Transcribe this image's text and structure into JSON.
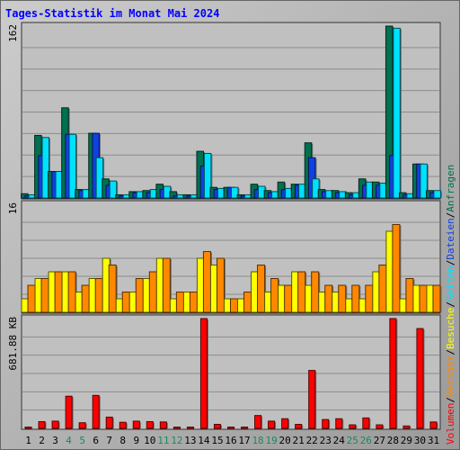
{
  "chart_data": {
    "type": "bar",
    "title": "Tages-Statistik im Monat Mai 2024",
    "x": [
      "1",
      "2",
      "3",
      "4",
      "5",
      "6",
      "7",
      "8",
      "9",
      "10",
      "11",
      "12",
      "13",
      "14",
      "15",
      "16",
      "17",
      "18",
      "19",
      "20",
      "21",
      "22",
      "23",
      "24",
      "25",
      "26",
      "27",
      "28",
      "29",
      "30",
      "31"
    ],
    "weekend_days": [
      "4",
      "5",
      "11",
      "12",
      "18",
      "19",
      "25",
      "26"
    ],
    "panels": [
      {
        "name": "hits",
        "ymax_label": "162",
        "ymax": 162,
        "series": [
          {
            "name": "Anfragen",
            "color": "#007050",
            "values": [
              4,
              59,
              25,
              85,
              8,
              61,
              18,
              3,
              6,
              7,
              13,
              6,
              3,
              44,
              10,
              10,
              3,
              13,
              7,
              15,
              13,
              52,
              8,
              7,
              5,
              18,
              15,
              162,
              5,
              32,
              7
            ]
          },
          {
            "name": "Dateien",
            "color": "#1040e0",
            "values": [
              2,
              40,
              25,
              60,
              7,
              61,
              12,
              2,
              5,
              5,
              8,
              2,
              2,
              30,
              8,
              10,
              2,
              8,
              5,
              8,
              12,
              38,
              6,
              5,
              3,
              12,
              12,
              40,
              3,
              32,
              5
            ]
          },
          {
            "name": "Seiten",
            "color": "#00e0ff",
            "values": [
              3,
              57,
              25,
              60,
              8,
              38,
              16,
              3,
              6,
              8,
              11,
              3,
              3,
              42,
              9,
              10,
              3,
              11,
              6,
              9,
              13,
              18,
              7,
              6,
              5,
              15,
              14,
              160,
              4,
              32,
              7
            ]
          }
        ]
      },
      {
        "name": "visits",
        "ymax_label": "16",
        "ymax": 16,
        "series": [
          {
            "name": "Besuche",
            "color": "#ffff00",
            "values": [
              2,
              5,
              6,
              6,
              3,
              5,
              8,
              2,
              3,
              5,
              8,
              2,
              3,
              8,
              7,
              2,
              2,
              6,
              3,
              4,
              6,
              4,
              3,
              3,
              2,
              2,
              6,
              12,
              2,
              4,
              4
            ]
          },
          {
            "name": "Rechner",
            "color": "#ff8800",
            "values": [
              4,
              5,
              6,
              6,
              4,
              5,
              7,
              3,
              5,
              6,
              8,
              3,
              3,
              9,
              8,
              2,
              3,
              7,
              5,
              4,
              6,
              6,
              4,
              4,
              4,
              4,
              7,
              13,
              5,
              4,
              4
            ]
          }
        ]
      },
      {
        "name": "volume",
        "ymax_label": "681.88 KB",
        "ymax": 681.88,
        "series": [
          {
            "name": "Volumen",
            "color": "#ff0000",
            "values": [
              6,
              42,
              45,
              200,
              35,
              205,
              70,
              38,
              45,
              42,
              40,
              8,
              8,
              681.88,
              25,
              8,
              8,
              80,
              45,
              60,
              25,
              360,
              55,
              60,
              22,
              65,
              22,
              681.88,
              15,
              620,
              40
            ]
          }
        ]
      }
    ],
    "legend": [
      {
        "label": "Volumen",
        "color": "#ff0000"
      },
      {
        "label": "Rechner",
        "color": "#ff8800"
      },
      {
        "label": "Besuche",
        "color": "#ffff00"
      },
      {
        "label": "Seiten",
        "color": "#00e0ff"
      },
      {
        "label": "Dateien",
        "color": "#1040e0"
      },
      {
        "label": "Anfragen",
        "color": "#007050"
      }
    ],
    "legend_separator": "/",
    "legend_placement": "right-vertical",
    "grid": true
  }
}
